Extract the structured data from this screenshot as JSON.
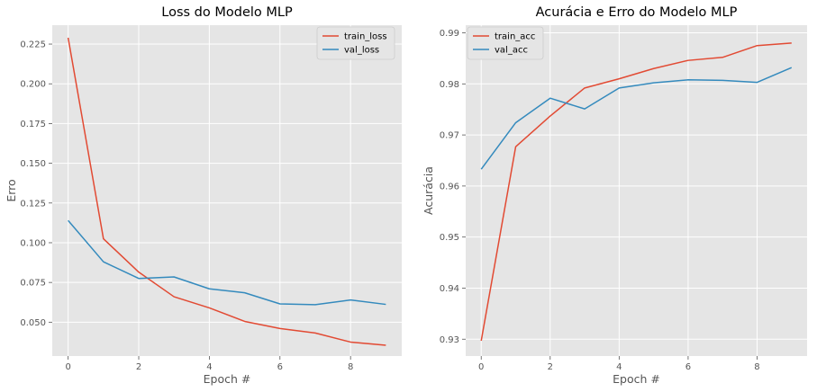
{
  "chart_data": [
    {
      "type": "line",
      "title": "Loss do Modelo MLP",
      "xlabel": "Epoch #",
      "ylabel": "Erro",
      "x": [
        0,
        1,
        2,
        3,
        4,
        5,
        6,
        7,
        8,
        9
      ],
      "xticks": [
        0,
        2,
        4,
        6,
        8
      ],
      "xtick_labels": [
        "0",
        "2",
        "4",
        "6",
        "8"
      ],
      "yticks": [
        0.05,
        0.075,
        0.1,
        0.125,
        0.15,
        0.175,
        0.2,
        0.225
      ],
      "ytick_labels": [
        "0.050",
        "0.075",
        "0.100",
        "0.125",
        "0.150",
        "0.175",
        "0.200",
        "0.225"
      ],
      "xlim": [
        -0.45,
        9.45
      ],
      "ylim": [
        0.0287,
        0.2369
      ],
      "grid": true,
      "legend_position": "top-right",
      "series": [
        {
          "name": "train_loss",
          "color": "#E24A33",
          "values": [
            0.229,
            0.1025,
            0.0815,
            0.066,
            0.059,
            0.0505,
            0.046,
            0.0432,
            0.0375,
            0.0355
          ]
        },
        {
          "name": "val_loss",
          "color": "#348ABD",
          "values": [
            0.114,
            0.088,
            0.0775,
            0.0785,
            0.071,
            0.0685,
            0.0615,
            0.061,
            0.064,
            0.0612
          ]
        }
      ]
    },
    {
      "type": "line",
      "title": "Acurácia e Erro do Modelo MLP",
      "xlabel": "Epoch #",
      "ylabel": "Acurácia",
      "x": [
        0,
        1,
        2,
        3,
        4,
        5,
        6,
        7,
        8,
        9
      ],
      "xticks": [
        0,
        2,
        4,
        6,
        8
      ],
      "xtick_labels": [
        "0",
        "2",
        "4",
        "6",
        "8"
      ],
      "yticks": [
        0.93,
        0.94,
        0.95,
        0.96,
        0.97,
        0.98,
        0.99
      ],
      "ytick_labels": [
        "0.93",
        "0.94",
        "0.95",
        "0.96",
        "0.97",
        "0.98",
        "0.99"
      ],
      "xlim": [
        -0.45,
        9.45
      ],
      "ylim": [
        0.9267,
        0.9915
      ],
      "grid": true,
      "legend_position": "top-left",
      "series": [
        {
          "name": "train_acc",
          "color": "#E24A33",
          "values": [
            0.9297,
            0.9677,
            0.9737,
            0.9792,
            0.981,
            0.983,
            0.9846,
            0.9852,
            0.9875,
            0.988
          ]
        },
        {
          "name": "val_acc",
          "color": "#348ABD",
          "values": [
            0.9633,
            0.9724,
            0.9772,
            0.9751,
            0.9792,
            0.9802,
            0.9808,
            0.9807,
            0.9803,
            0.9832
          ]
        }
      ]
    }
  ]
}
